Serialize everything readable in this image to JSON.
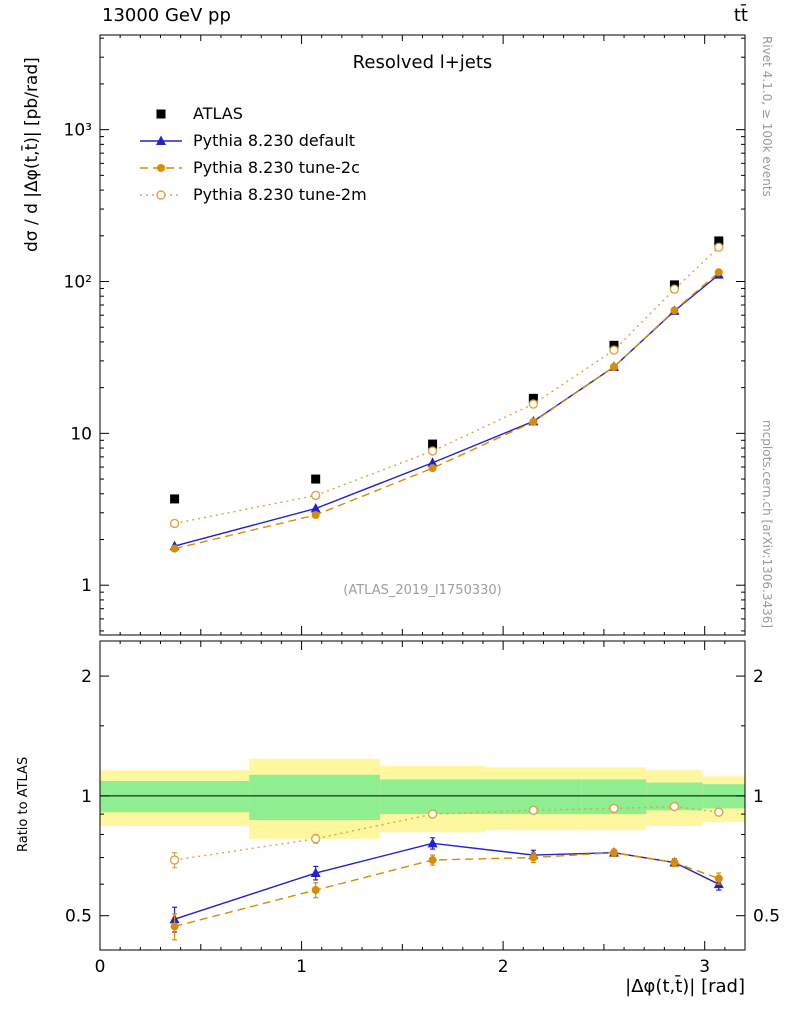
{
  "page": {
    "header_left": "13000 GeV pp",
    "header_right": "tt̄",
    "title": "Resolved l+jets",
    "watermark": "(ATLAS_2019_I1750330)",
    "right_caption_top": "Rivet 4.1.0, ≥ 100k events",
    "right_caption_bottom": "mcplots.cern.ch [arXiv:1306.3436]",
    "ylabel_top": "dσ / d |Δφ(t,t̄)| [pb/rad]",
    "ylabel_bottom": "Ratio to ATLAS",
    "xlabel": "|Δφ(t,t̄)| [rad]"
  },
  "chart_data": {
    "type": "line",
    "title": "Resolved l+jets",
    "xlabel": "|Δφ(t,t̄)| [rad]",
    "ylabel_main": "dσ / d |Δφ(t,t̄)| [pb/rad]",
    "ylabel_ratio": "Ratio to ATLAS",
    "x_range": [
      0,
      3.2
    ],
    "main_ylim": [
      0.47,
      4200
    ],
    "main_yscale": "log",
    "main_yticks": [
      {
        "v": 1,
        "label": "1"
      },
      {
        "v": 10,
        "label": "10"
      },
      {
        "v": 100,
        "label": "10²"
      },
      {
        "v": 1000,
        "label": "10³"
      }
    ],
    "ratio_ylim": [
      0.41,
      2.45
    ],
    "ratio_yscale": "log",
    "ratio_yticks": [
      {
        "v": 0.5,
        "label": "0.5"
      },
      {
        "v": 1,
        "label": "1"
      },
      {
        "v": 2,
        "label": "2"
      }
    ],
    "ratio_minor_ticks": [
      0.6,
      0.7,
      0.8,
      0.9,
      1.5
    ],
    "xticks": [
      0,
      1,
      2,
      3
    ],
    "x": [
      0.37,
      1.07,
      1.65,
      2.15,
      2.55,
      2.85,
      3.07
    ],
    "series": [
      {
        "name": "ATLAS",
        "marker": "square-filled",
        "color": "#000000",
        "line": "none",
        "values": [
          3.7,
          5.0,
          8.5,
          17,
          38,
          95,
          185
        ]
      },
      {
        "name": "Pythia 8.230 default",
        "marker": "triangle-filled",
        "color": "#2222cc",
        "line": "solid",
        "values": [
          1.81,
          3.2,
          6.4,
          12.0,
          27.4,
          64,
          111
        ],
        "ratio": [
          0.49,
          0.64,
          0.76,
          0.71,
          0.72,
          0.68,
          0.6
        ],
        "ratio_err": [
          0.035,
          0.025,
          0.025,
          0.02,
          0.015,
          0.015,
          0.02
        ]
      },
      {
        "name": "Pythia 8.230 tune-2c",
        "marker": "circle-filled",
        "color": "#d98c00",
        "line": "dashed",
        "values": [
          1.74,
          2.9,
          5.9,
          11.9,
          27.4,
          64.5,
          115
        ],
        "ratio": [
          0.47,
          0.58,
          0.69,
          0.7,
          0.72,
          0.68,
          0.62
        ],
        "ratio_err": [
          0.035,
          0.025,
          0.02,
          0.02,
          0.015,
          0.015,
          0.02
        ]
      },
      {
        "name": "Pythia 8.230 tune-2m",
        "marker": "circle-open",
        "color": "#e0a243",
        "line": "dotted",
        "values": [
          2.55,
          3.9,
          7.65,
          15.6,
          35.3,
          89,
          168
        ],
        "ratio": [
          0.69,
          0.78,
          0.9,
          0.92,
          0.93,
          0.94,
          0.91
        ],
        "ratio_err": [
          0.03,
          0.02,
          0.015,
          0.012,
          0.012,
          0.012,
          0.015
        ]
      }
    ],
    "ratio_bands": {
      "edges": [
        0,
        0.74,
        1.39,
        1.91,
        2.39,
        2.71,
        2.99,
        3.2
      ],
      "yellow_lo": [
        0.84,
        0.78,
        0.81,
        0.82,
        0.82,
        0.84,
        0.86
      ],
      "yellow_hi": [
        1.16,
        1.24,
        1.19,
        1.18,
        1.18,
        1.16,
        1.12
      ],
      "green_lo": [
        0.91,
        0.87,
        0.9,
        0.9,
        0.9,
        0.92,
        0.93
      ],
      "green_hi": [
        1.09,
        1.13,
        1.1,
        1.1,
        1.1,
        1.08,
        1.07
      ],
      "yellow_color": "#fdf8a0",
      "green_color": "#8fee8f"
    },
    "reference_line": 1
  }
}
